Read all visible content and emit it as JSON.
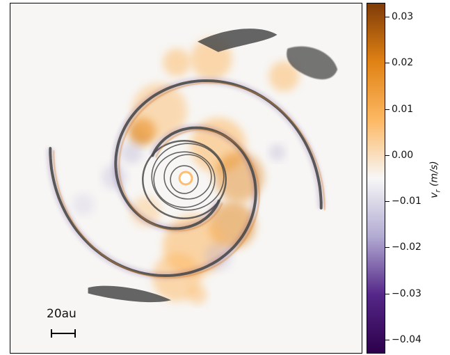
{
  "chart_data": {
    "type": "heatmap",
    "title": "",
    "colorbar": {
      "label": "v_r (m/s)",
      "label_prefix": "v",
      "label_sub": "r",
      "label_suffix": " (m/s)",
      "range": [
        -0.043,
        0.033
      ],
      "ticks": [
        0.03,
        0.02,
        0.01,
        0.0,
        -0.01,
        -0.02,
        -0.03,
        -0.04
      ],
      "tick_labels": [
        "0.03",
        "0.02",
        "0.01",
        "0.00",
        "−0.01",
        "−0.02",
        "−0.03",
        "−0.04"
      ],
      "colormap": "PuOr_r",
      "colors": {
        "max": "#7f3b08",
        "high": "#e08214",
        "mid_high": "#fdb863",
        "zero": "#f7f7f7",
        "mid_low": "#b2abd2",
        "low": "#542788",
        "min": "#2d004b"
      }
    },
    "scalebar": {
      "label": "20au"
    },
    "overlay_color": "#4a4a4a"
  }
}
